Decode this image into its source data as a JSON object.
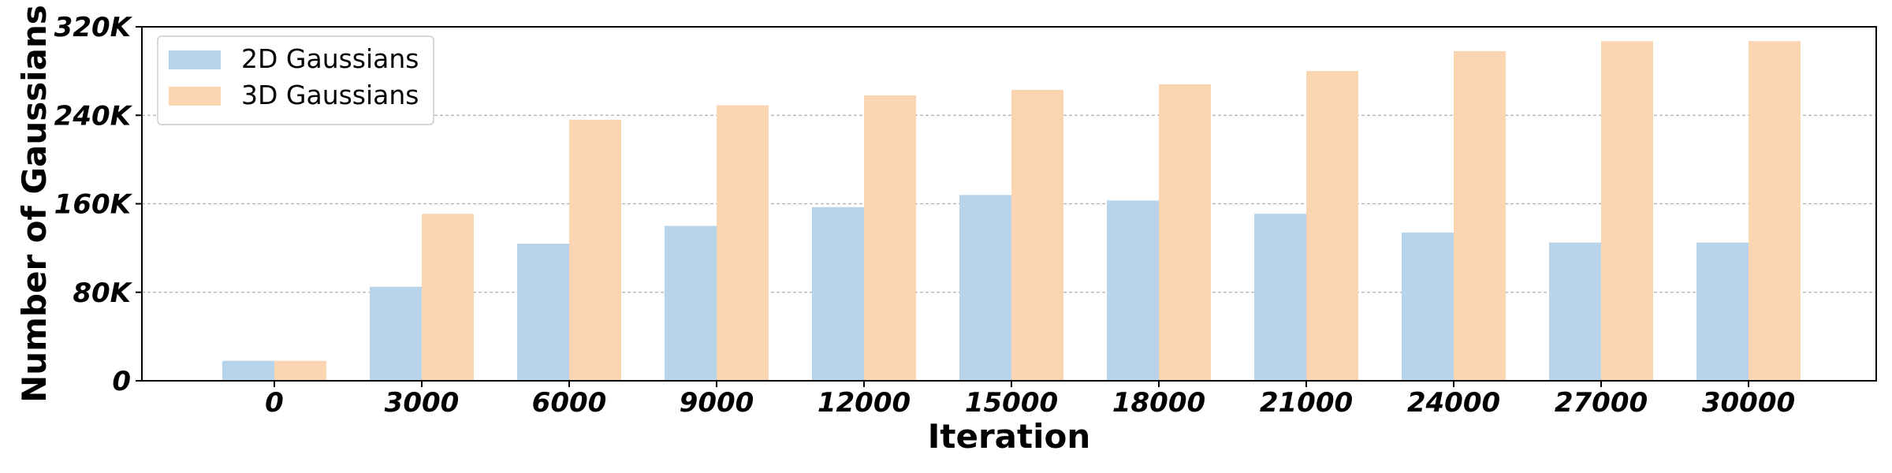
{
  "chart_data": {
    "type": "bar",
    "categories": [
      "0",
      "3000",
      "6000",
      "9000",
      "12000",
      "15000",
      "18000",
      "21000",
      "24000",
      "27000",
      "30000"
    ],
    "series": [
      {
        "name": "2D Gaussians",
        "color": "#b8d4ea",
        "values": [
          18000,
          85000,
          124000,
          140000,
          157000,
          168000,
          163000,
          151000,
          134000,
          125000,
          125000
        ]
      },
      {
        "name": "3D Gaussians",
        "color": "#fbd4b2",
        "values": [
          18000,
          151000,
          236000,
          249000,
          258000,
          263000,
          268000,
          280000,
          298000,
          307000,
          307000
        ]
      }
    ],
    "xlabel": "Iteration",
    "ylabel": "Number of Gaussians",
    "ylim": [
      0,
      320000
    ],
    "yticks": [
      0,
      80000,
      160000,
      240000,
      320000
    ],
    "ytick_labels": [
      "0",
      "80K",
      "160K",
      "240K",
      "320K"
    ],
    "grid": "horizontal dashed",
    "legend_position": "top-left"
  }
}
